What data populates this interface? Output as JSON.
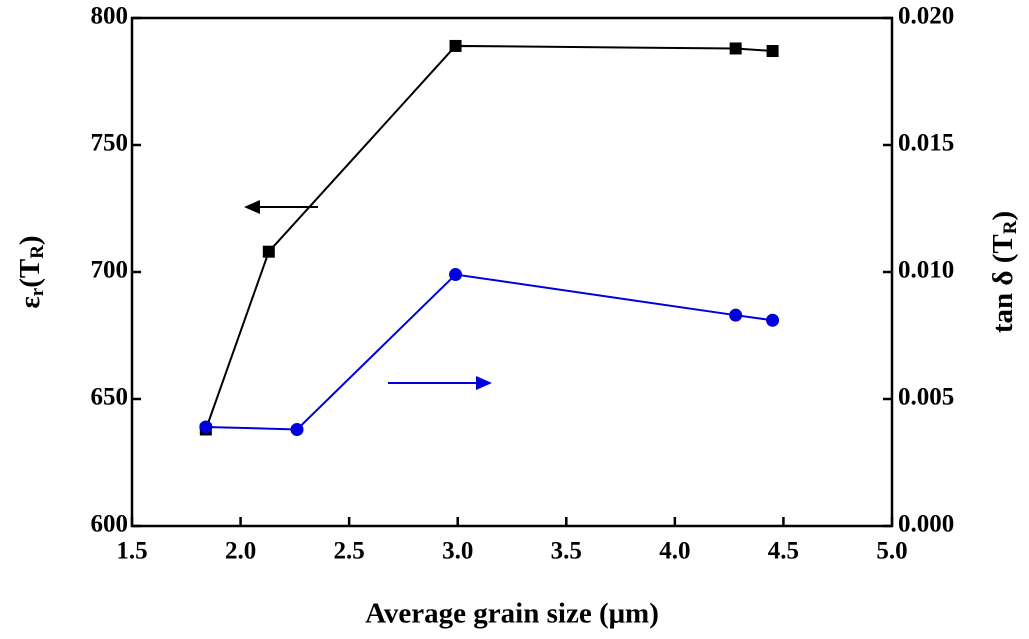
{
  "chart_data": {
    "type": "line",
    "xlabel": "Average grain size (μm)",
    "ylabel": [
      "ε",
      "r",
      "(T",
      "R",
      ")"
    ],
    "y2label": [
      "tan δ (T",
      "R",
      ")"
    ],
    "xlim": [
      1.5,
      5.0
    ],
    "xticks": [
      1.5,
      {
        "value": 2.0,
        "label": "2.0"
      },
      2.5,
      {
        "value": 3.0,
        "label": "3.0"
      },
      3.5,
      {
        "value": 4.0,
        "label": "4.0"
      },
      4.5,
      {
        "value": 5.0,
        "label": "5.0"
      }
    ],
    "ylim": [
      600,
      800
    ],
    "yticks": [
      600,
      650,
      700,
      750,
      800
    ],
    "y2lim": [
      0,
      0.02
    ],
    "y2ticks": [
      {
        "value": 0,
        "label": "0.000"
      },
      0.005,
      {
        "value": 0.01,
        "label": "0.010"
      },
      0.015,
      {
        "value": 0.02,
        "label": "0.020"
      }
    ],
    "series": [
      {
        "color": "#000000",
        "marker": "square",
        "x": [
          1.84,
          2.13,
          2.99,
          4.28,
          4.45
        ],
        "values": [
          638,
          708,
          789,
          788,
          787
        ]
      },
      {
        "color": "#0000dd",
        "marker": "circle",
        "axis": "y2",
        "x": [
          1.84,
          2.26,
          2.99,
          4.28,
          4.45
        ],
        "values": [
          0.0039,
          0.0038,
          0.0099,
          0.0083,
          0.0081
        ]
      }
    ]
  }
}
